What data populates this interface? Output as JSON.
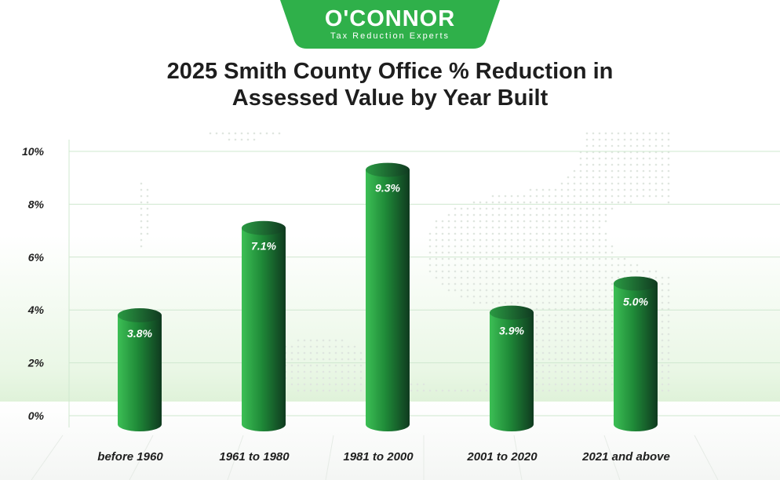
{
  "logo": {
    "name": "O'CONNOR",
    "tagline": "Tax Reduction Experts",
    "color": "#2fb04a"
  },
  "chart_data": {
    "type": "bar",
    "title": "2025 Smith County Office % Reduction in Assessed Value by Year Built",
    "title_lines": [
      "2025 Smith County Office % Reduction in",
      "Assessed Value by Year Built"
    ],
    "categories": [
      "before 1960",
      "1961 to 1980",
      "1981 to 2000",
      "2001 to 2020",
      "2021 and above"
    ],
    "values": [
      3.8,
      7.1,
      9.3,
      3.9,
      5.0
    ],
    "value_labels": [
      "3.8%",
      "7.1%",
      "9.3%",
      "3.9%",
      "5.0%"
    ],
    "ylim": [
      0,
      10
    ],
    "yticks": [
      0,
      2,
      4,
      6,
      8,
      10
    ],
    "ytick_labels": [
      "0%",
      "2%",
      "4%",
      "6%",
      "8%",
      "10%"
    ],
    "xlabel": "",
    "ylabel": "",
    "grid": true,
    "bar_style": "3d-cylinder",
    "colors": {
      "bar_light": "#2fb04a",
      "bar_dark": "#123d22",
      "grid": "#cfe8cf"
    }
  }
}
